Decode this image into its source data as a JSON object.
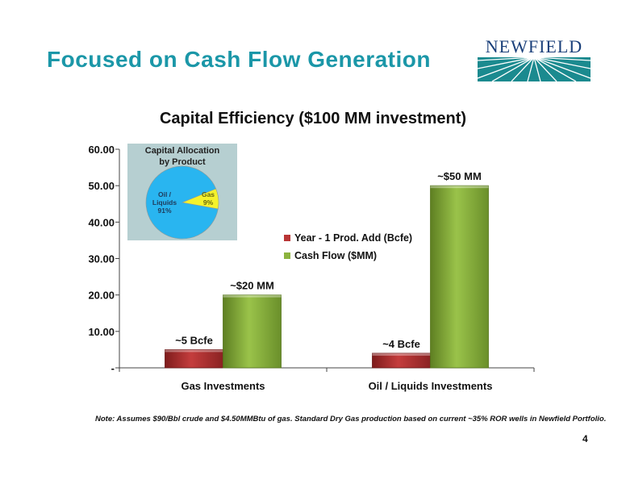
{
  "slide": {
    "title": "Focused on Cash Flow Generation",
    "logo_text": "NEWFIELD",
    "note": "Note: Assumes $90/Bbl crude and $4.50MMBtu of gas. Standard Dry Gas production based on current ~35% ROR wells in Newfield Portfolio.",
    "page_number": "4"
  },
  "colors": {
    "title": "#1b97a8",
    "logo_teal": "#1b8a8f",
    "logo_navy": "#1a3f7a",
    "red_series": "#b93535",
    "green_series": "#8cb33f",
    "pie_oil": "#29b5f0",
    "pie_gas": "#f4f22c",
    "inset_bg": "#b6cfd1"
  },
  "chart_data": [
    {
      "type": "bar",
      "title": "Capital Efficiency ($100 MM investment)",
      "categories": [
        "Gas Investments",
        "Oil / Liquids Investments"
      ],
      "series": [
        {
          "name": "Year - 1 Prod. Add (Bcfe)",
          "values": [
            5,
            4
          ],
          "labels": [
            "~5 Bcfe",
            "~4 Bcfe"
          ],
          "color": "#b93535"
        },
        {
          "name": "Cash Flow ($MM)",
          "values": [
            20,
            50
          ],
          "labels": [
            "~$20 MM",
            "~$50 MM"
          ],
          "color": "#8cb33f"
        }
      ],
      "yticks": [
        "-",
        "10.00",
        "20.00",
        "30.00",
        "40.00",
        "50.00",
        "60.00"
      ],
      "ylim": [
        0,
        60
      ],
      "legend_position": "right-middle"
    },
    {
      "type": "pie",
      "title": "Capital Allocation by Product",
      "title_lines": [
        "Capital Allocation",
        "by Product"
      ],
      "slices": [
        {
          "label_lines": [
            "Oil /",
            "Liquids",
            "91%"
          ],
          "value": 91,
          "color": "#29b5f0"
        },
        {
          "label_lines": [
            "Gas",
            "9%"
          ],
          "value": 9,
          "color": "#f4f22c"
        }
      ]
    }
  ]
}
